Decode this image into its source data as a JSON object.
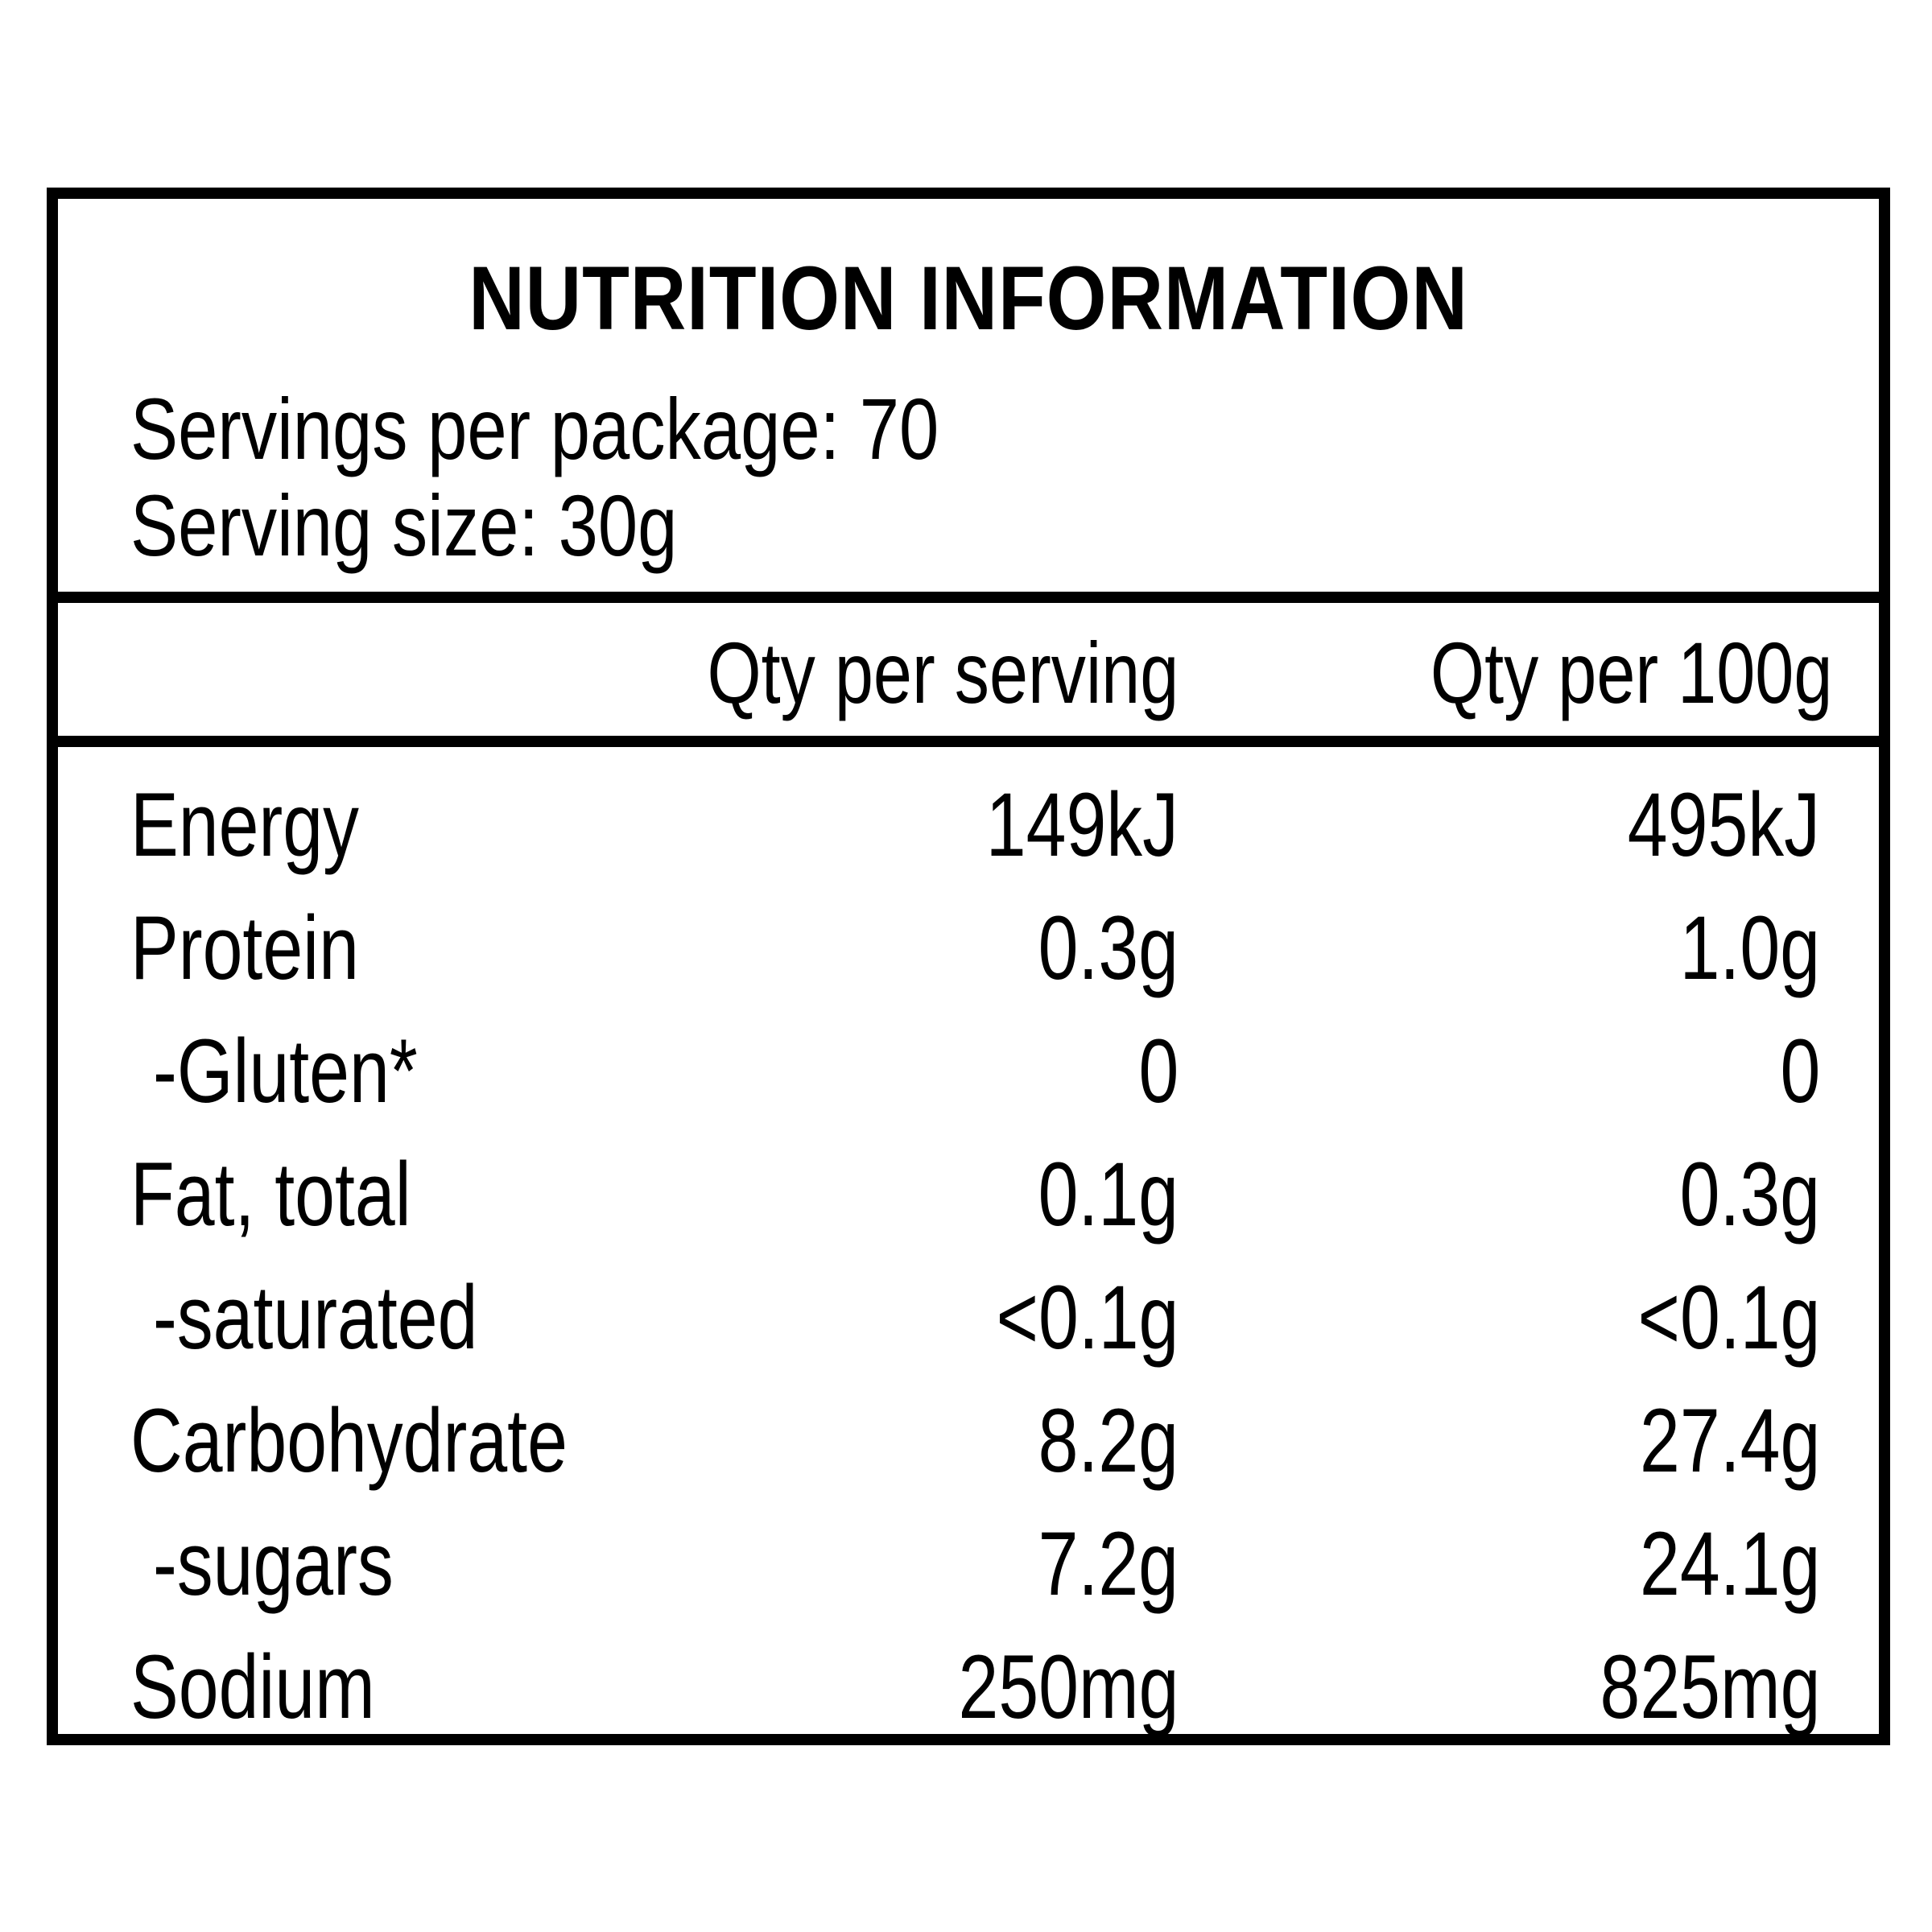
{
  "label": {
    "title": "NUTRITION INFORMATION",
    "servings_per_package": "Servings per package: 70",
    "serving_size": "Serving size: 30g",
    "columns": {
      "per_serving": "Qty per serving",
      "per_100g": "Qty per 100g"
    },
    "rows": [
      {
        "name": "Energy",
        "per_serving": "149kJ",
        "per_100g": "495kJ",
        "sub": false
      },
      {
        "name": "Protein",
        "per_serving": "0.3g",
        "per_100g": "1.0g",
        "sub": false
      },
      {
        "name": "-Gluten*",
        "per_serving": "0",
        "per_100g": "0",
        "sub": true
      },
      {
        "name": "Fat, total",
        "per_serving": "0.1g",
        "per_100g": "0.3g",
        "sub": false
      },
      {
        "name": "-saturated",
        "per_serving": "<0.1g",
        "per_100g": "<0.1g",
        "sub": true
      },
      {
        "name": "Carbohydrate",
        "per_serving": "8.2g",
        "per_100g": "27.4g",
        "sub": false
      },
      {
        "name": "-sugars",
        "per_serving": "7.2g",
        "per_100g": "24.1g",
        "sub": true
      },
      {
        "name": "Sodium",
        "per_serving": "250mg",
        "per_100g": "825mg",
        "sub": false
      }
    ]
  }
}
